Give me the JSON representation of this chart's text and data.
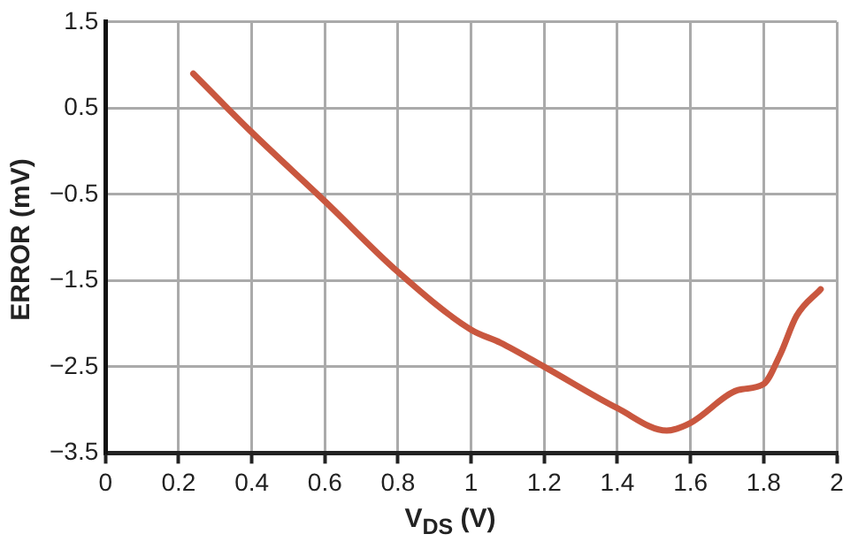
{
  "chart_data": {
    "type": "line",
    "xlabel": "V$_{DS}$ (V)",
    "ylabel": "ERROR (mV)",
    "xlim": [
      0,
      2
    ],
    "xticks": [
      0,
      0.2,
      0.4,
      0.6,
      0.8,
      1,
      1.2,
      1.4,
      1.6,
      1.8,
      2
    ],
    "ylim": [
      -3.5,
      1.5
    ],
    "yticks": [
      -3.5,
      -2.5,
      -1.5,
      -0.5,
      0.5,
      1.5
    ],
    "grid": true,
    "legend": false,
    "marker": "none",
    "line_style": "solid",
    "series": [
      {
        "color": "#c9573f",
        "x": [
          0.24,
          0.4,
          0.6,
          0.8,
          1.0,
          1.08,
          1.2,
          1.4,
          1.535,
          1.6,
          1.73,
          1.8,
          1.845,
          1.89,
          1.956
        ],
        "values": [
          0.9,
          0.22,
          -0.58,
          -1.4,
          -2.07,
          -2.22,
          -2.5,
          -2.98,
          -3.24,
          -3.15,
          -2.77,
          -2.7,
          -2.36,
          -1.91,
          -1.6
        ]
      }
    ]
  }
}
